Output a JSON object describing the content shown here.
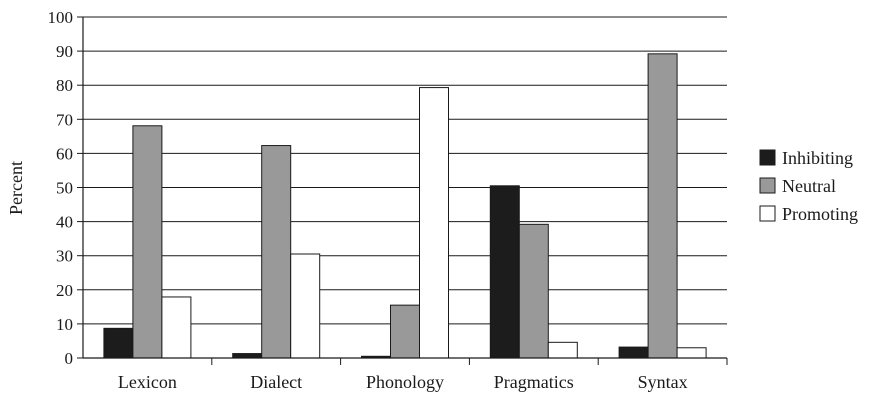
{
  "chart_data": {
    "type": "bar",
    "title": "",
    "xlabel": "",
    "ylabel": "Percent",
    "ylim": [
      0,
      100
    ],
    "yticks": [
      "0",
      "10",
      "20",
      "30",
      "40",
      "50",
      "60",
      "70",
      "80",
      "90",
      "100"
    ],
    "grid": true,
    "legend_position": "right",
    "categories": [
      "Lexicon",
      "Dialect",
      "Phonology",
      "Pragmatics",
      "Syntax"
    ],
    "series": [
      {
        "name": "Inhibiting",
        "color": "#1c1c1c",
        "values": [
          8.7,
          1.3,
          0.5,
          50.5,
          3.2
        ]
      },
      {
        "name": "Neutral",
        "color": "#999999",
        "values": [
          68.1,
          62.3,
          15.5,
          39.2,
          89.2
        ]
      },
      {
        "name": "Promoting",
        "color": "#ffffff",
        "values": [
          17.9,
          30.5,
          79.3,
          4.6,
          3.0
        ]
      }
    ]
  }
}
